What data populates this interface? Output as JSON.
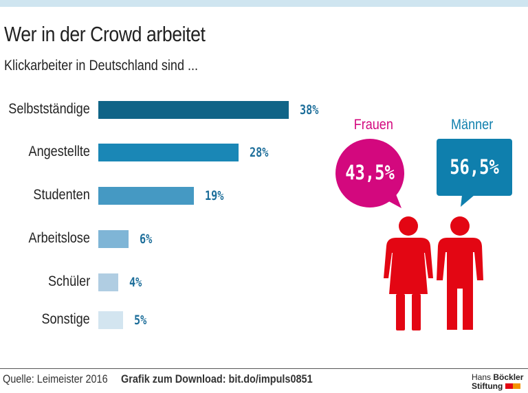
{
  "title": "Wer in der Crowd arbeitet",
  "subtitle": "Klickarbeiter in Deutschland sind ...",
  "chart_data": {
    "type": "bar",
    "orientation": "horizontal",
    "categories": [
      "Selbstständige",
      "Angestellte",
      "Studenten",
      "Arbeitslose",
      "Schüler",
      "Sonstige"
    ],
    "values": [
      38,
      28,
      19,
      6,
      4,
      5
    ],
    "labels": [
      "38%",
      "28%",
      "19%",
      "6%",
      "4%",
      "5%"
    ],
    "colors": [
      "#106487",
      "#1a87b6",
      "#4599c3",
      "#7fb5d6",
      "#b0cde2",
      "#d3e5f0"
    ],
    "value_color": "#1d6e9a",
    "grid": false
  },
  "gender": {
    "women": {
      "label": "Frauen",
      "value": "43,5%",
      "color": "#d3087e"
    },
    "men": {
      "label": "Männer",
      "value": "56,5%",
      "color": "#0f7fad"
    },
    "figure_color": "#e30613"
  },
  "footer": {
    "source": "Quelle: Leimeister 2016",
    "download": "Grafik zum Download: bit.do/impuls0851",
    "logo": "Hans Böckler Stiftung"
  }
}
